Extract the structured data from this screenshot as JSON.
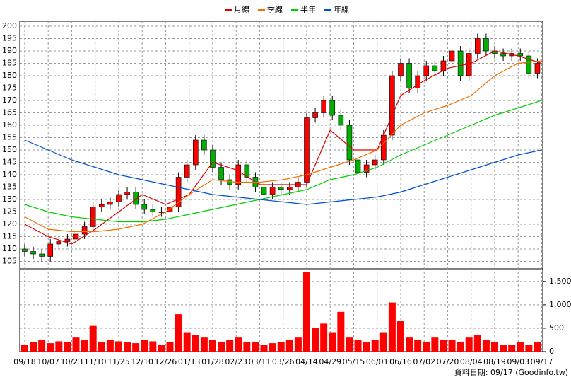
{
  "chart_data": {
    "type": "candlestick",
    "legend": {
      "position": "top"
    },
    "source": "資料日期: 09/17 (Goodinfo.tw)",
    "x": [
      0,
      4,
      8,
      12,
      16,
      20,
      24,
      28,
      32,
      36,
      40,
      44,
      48,
      52,
      56,
      60,
      64,
      68,
      72,
      76,
      80,
      84,
      88,
      92,
      96,
      100,
      104,
      108,
      112,
      116,
      120,
      124,
      128,
      132,
      136,
      140,
      144,
      148,
      152,
      156,
      160,
      164,
      168,
      172,
      176,
      180,
      184,
      188,
      192,
      196,
      200,
      204,
      208,
      212,
      216,
      220,
      224,
      228,
      232,
      236,
      240
    ],
    "open": [
      110,
      109,
      108,
      107,
      112,
      113,
      114,
      116,
      119,
      127,
      128,
      129,
      132,
      133,
      128,
      126,
      125,
      125,
      127,
      139,
      144,
      154,
      150,
      143,
      138,
      136,
      144,
      139,
      135,
      132,
      135,
      134,
      135,
      137,
      163,
      165,
      170,
      164,
      160,
      146,
      141,
      144,
      146,
      156,
      180,
      185,
      175,
      180,
      184,
      182,
      186,
      190,
      180,
      189,
      195,
      190,
      189,
      188,
      189,
      188,
      181
    ],
    "high": [
      112,
      111,
      110,
      114,
      115,
      116,
      118,
      121,
      129,
      130,
      131,
      134,
      135,
      135,
      130,
      128,
      127,
      129,
      141,
      146,
      156,
      156,
      152,
      145,
      140,
      146,
      146,
      141,
      137,
      137,
      137,
      137,
      139,
      165,
      167,
      172,
      172,
      166,
      162,
      148,
      146,
      148,
      158,
      182,
      187,
      187,
      182,
      186,
      186,
      188,
      192,
      192,
      191,
      197,
      197,
      192,
      191,
      191,
      191,
      190,
      187
    ],
    "low": [
      107,
      106,
      105,
      105,
      110,
      111,
      112,
      114,
      117,
      125,
      126,
      127,
      130,
      126,
      124,
      123,
      123,
      123,
      125,
      137,
      142,
      148,
      141,
      136,
      134,
      134,
      137,
      133,
      130,
      130,
      132,
      132,
      133,
      135,
      161,
      163,
      162,
      158,
      144,
      139,
      139,
      142,
      144,
      154,
      178,
      173,
      173,
      178,
      180,
      180,
      184,
      178,
      178,
      187,
      188,
      187,
      186,
      186,
      186,
      179,
      179
    ],
    "close": [
      109,
      108,
      107,
      112,
      113,
      114,
      116,
      119,
      127,
      128,
      129,
      132,
      133,
      128,
      126,
      125,
      125,
      127,
      139,
      144,
      154,
      150,
      143,
      138,
      136,
      144,
      139,
      135,
      132,
      135,
      134,
      135,
      137,
      163,
      165,
      170,
      164,
      160,
      146,
      141,
      144,
      146,
      156,
      180,
      185,
      175,
      180,
      184,
      182,
      186,
      190,
      180,
      189,
      195,
      190,
      189,
      188,
      189,
      188,
      181,
      185
    ],
    "volume": [
      150,
      200,
      250,
      180,
      220,
      200,
      300,
      250,
      550,
      200,
      250,
      220,
      200,
      180,
      250,
      220,
      150,
      200,
      800,
      400,
      350,
      300,
      250,
      200,
      250,
      300,
      200,
      200,
      150,
      180,
      200,
      250,
      300,
      1700,
      500,
      600,
      400,
      850,
      300,
      250,
      200,
      250,
      400,
      1050,
      650,
      300,
      250,
      200,
      300,
      250,
      250,
      200,
      300,
      350,
      250,
      200,
      150,
      150,
      200,
      150,
      200
    ],
    "up_color": "#ff0000",
    "down_color": "#00b000",
    "volume_color": "#ff0000",
    "series": [
      {
        "name": "月線",
        "color": "#e00000",
        "x": [
          0,
          11,
          22,
          33,
          44,
          55,
          66,
          77,
          88,
          99,
          110,
          121,
          132,
          143,
          154,
          165,
          176,
          187,
          198,
          209,
          220,
          231,
          242
        ],
        "values": [
          120,
          115,
          112,
          118,
          125,
          132,
          128,
          132,
          145,
          142,
          136,
          136,
          136,
          158,
          150,
          150,
          172,
          178,
          183,
          185,
          190,
          188,
          185
        ]
      },
      {
        "name": "季線",
        "color": "#f07000",
        "x": [
          0,
          11,
          22,
          33,
          44,
          55,
          66,
          77,
          88,
          99,
          110,
          121,
          132,
          143,
          154,
          165,
          176,
          187,
          198,
          209,
          220,
          231,
          242
        ],
        "values": [
          123,
          118,
          117,
          117,
          118,
          120,
          125,
          132,
          138,
          137,
          137,
          138,
          140,
          143,
          146,
          150,
          160,
          165,
          168,
          172,
          180,
          185,
          186
        ]
      },
      {
        "name": "半年",
        "color": "#00d000",
        "x": [
          0,
          11,
          22,
          33,
          44,
          55,
          66,
          77,
          88,
          99,
          110,
          121,
          132,
          143,
          154,
          165,
          176,
          187,
          198,
          209,
          220,
          231,
          242
        ],
        "values": [
          128,
          125,
          123,
          122,
          121,
          121,
          122,
          124,
          126,
          128,
          130,
          132,
          134,
          138,
          140,
          143,
          148,
          152,
          156,
          160,
          164,
          167,
          170
        ]
      },
      {
        "name": "年線",
        "color": "#0050d0",
        "x": [
          0,
          11,
          22,
          33,
          44,
          55,
          66,
          77,
          88,
          99,
          110,
          121,
          132,
          143,
          154,
          165,
          176,
          187,
          198,
          209,
          220,
          231,
          242
        ],
        "values": [
          154,
          150,
          146,
          143,
          140,
          138,
          136,
          134,
          132,
          131,
          130,
          129,
          128,
          129,
          130,
          131,
          133,
          136,
          139,
          142,
          145,
          148,
          150
        ]
      }
    ],
    "xlim": [
      -2.3,
      242.5
    ],
    "xticks": [
      {
        "value": 0,
        "label": "09/18"
      },
      {
        "value": 11,
        "label": "10/07"
      },
      {
        "value": 22,
        "label": "10/23"
      },
      {
        "value": 33,
        "label": "11/10"
      },
      {
        "value": 44,
        "label": "11/25"
      },
      {
        "value": 55,
        "label": "12/10"
      },
      {
        "value": 66,
        "label": "12/26"
      },
      {
        "value": 77,
        "label": "01/13"
      },
      {
        "value": 88,
        "label": "01/28"
      },
      {
        "value": 99,
        "label": "02/23"
      },
      {
        "value": 110,
        "label": "03/11"
      },
      {
        "value": 121,
        "label": "03/26"
      },
      {
        "value": 132,
        "label": "04/14"
      },
      {
        "value": 143,
        "label": "04/29"
      },
      {
        "value": 154,
        "label": "05/15"
      },
      {
        "value": 165,
        "label": "06/01"
      },
      {
        "value": 176,
        "label": "06/16"
      },
      {
        "value": 187,
        "label": "07/02"
      },
      {
        "value": 198,
        "label": "07/20"
      },
      {
        "value": 209,
        "label": "08/04"
      },
      {
        "value": 220,
        "label": "08/19"
      },
      {
        "value": 231,
        "label": "09/03"
      },
      {
        "value": 242,
        "label": "09/17"
      }
    ],
    "ylim": [
      102,
      202
    ],
    "yticks": [
      105,
      110,
      115,
      120,
      125,
      130,
      135,
      140,
      145,
      150,
      155,
      160,
      165,
      170,
      175,
      180,
      185,
      190,
      195,
      200
    ],
    "y2lim": [
      0,
      1770
    ],
    "y2ticks": [
      0,
      500,
      {
        "value": 1000,
        "label": "1,000"
      },
      {
        "value": 1500,
        "label": "1,500"
      }
    ],
    "grid": true
  }
}
